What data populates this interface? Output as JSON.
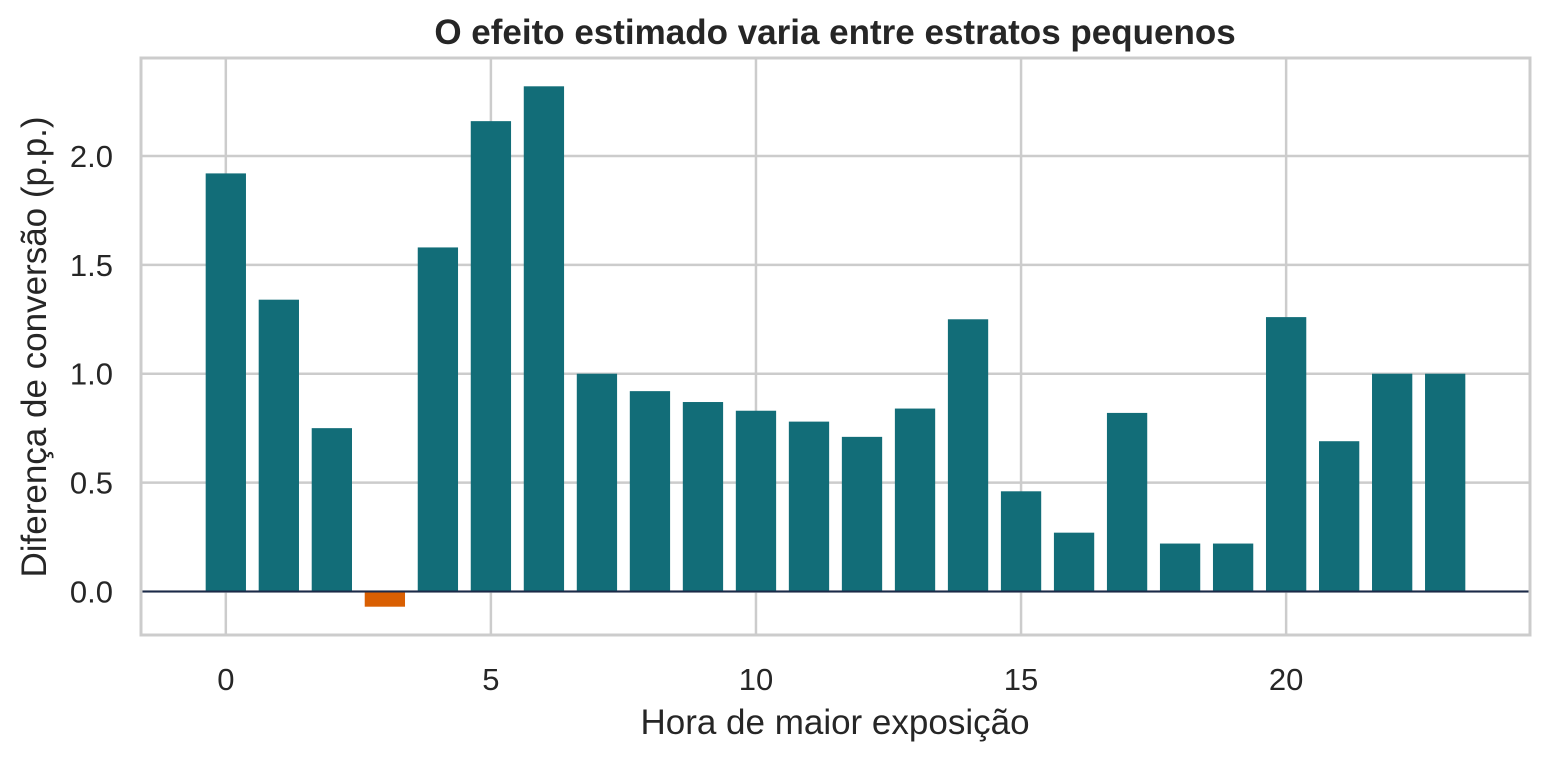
{
  "chart_data": {
    "type": "bar",
    "title": "O efeito estimado varia entre estratos pequenos",
    "xlabel": "Hora de maior exposição",
    "ylabel": "Diferença de conversão (p.p.)",
    "x": [
      0,
      1,
      2,
      3,
      4,
      5,
      6,
      7,
      8,
      9,
      10,
      11,
      12,
      13,
      14,
      15,
      16,
      17,
      18,
      19,
      20,
      21,
      22,
      23
    ],
    "values": [
      1.92,
      1.34,
      0.75,
      -0.07,
      1.58,
      2.16,
      2.32,
      1.0,
      0.92,
      0.87,
      0.83,
      0.78,
      0.71,
      0.84,
      1.25,
      0.46,
      0.27,
      0.82,
      0.22,
      0.22,
      1.26,
      0.69,
      1.0,
      1.0
    ],
    "xticks": [
      0,
      5,
      10,
      15,
      20
    ],
    "xtick_labels": [
      "0",
      "5",
      "10",
      "15",
      "20"
    ],
    "yticks": [
      0.0,
      0.5,
      1.0,
      1.5,
      2.0
    ],
    "ytick_labels": [
      "0.0",
      "0.5",
      "1.0",
      "1.5",
      "2.0"
    ],
    "xlim": [
      -1.6,
      24.6
    ],
    "ylim": [
      -0.2,
      2.45
    ],
    "grid": true,
    "colors": {
      "positive": "#126d78",
      "negative": "#d95f02",
      "zero_line": "#1b2a49",
      "grid": "#cccccc"
    }
  }
}
